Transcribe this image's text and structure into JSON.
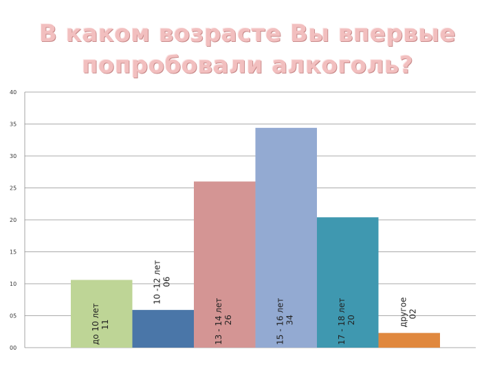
{
  "title_line1": "В каком возрасте Вы впервые",
  "title_line2": "попробовали алкоголь?",
  "chart_data": {
    "type": "bar",
    "title": "В каком возрасте Вы впервые попробовали алкоголь?",
    "categories": [
      "до 10 лет",
      "10 -12 лет",
      "13 - 14 лет",
      "15 - 16 лет",
      "17 - 18 лет",
      "другое"
    ],
    "values": [
      10.6,
      5.9,
      26.0,
      34.4,
      20.4,
      2.3
    ],
    "value_labels": [
      "11",
      "06",
      "26",
      "34",
      "20",
      "02"
    ],
    "colors": [
      "#bed596",
      "#4a76a8",
      "#d49594",
      "#93aad2",
      "#3f98b0",
      "#e0883e"
    ],
    "ylim": [
      0,
      40
    ],
    "ytick_labels": [
      "00",
      "05",
      "10",
      "15",
      "20",
      "25",
      "30",
      "35",
      "40"
    ],
    "grid": true,
    "legend": "none"
  }
}
